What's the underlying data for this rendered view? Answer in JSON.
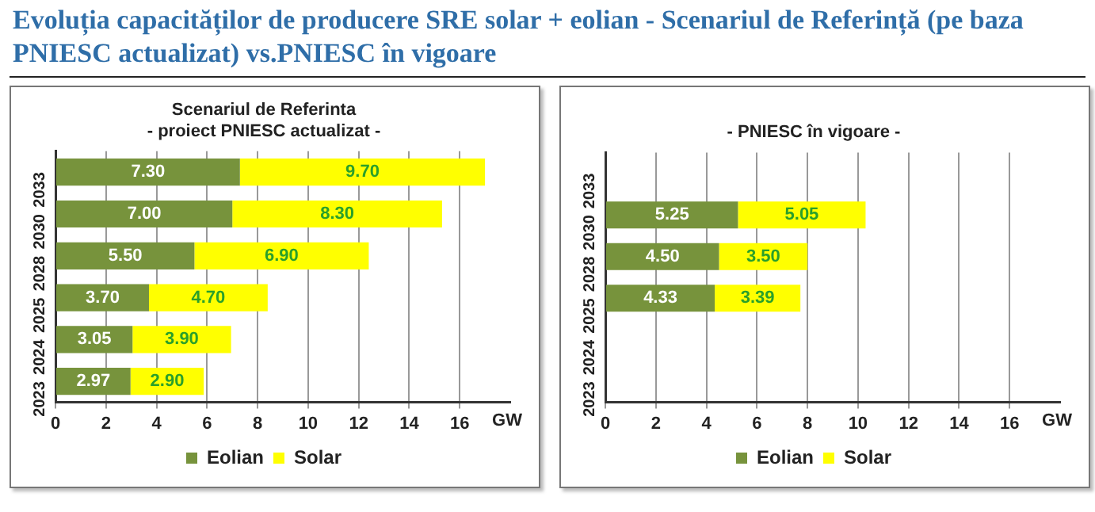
{
  "chart_data": [
    {
      "type": "bar",
      "orientation": "horizontal",
      "stacked": true,
      "title": "Evoluția capacităților de producere SRE solar + eolian - Scenariul de Referință (pe baza PNIESC actualizat)  vs.PNIESC în vigoare",
      "subtitle": "Scenariul de Referinta\n- proiect PNIESC actualizat -",
      "xlabel": "GW",
      "categories": [
        "2033",
        "2030",
        "2028",
        "2025",
        "2024",
        "2023"
      ],
      "series": [
        {
          "name": "Eolian",
          "color": "#77933c",
          "values": [
            7.3,
            7.0,
            5.5,
            3.7,
            3.05,
            2.97
          ],
          "value_labels": [
            "7.30",
            "7.00",
            "5.50",
            "3.70",
            "3.05",
            "2.97"
          ]
        },
        {
          "name": "Solar",
          "color": "#ffff00",
          "values": [
            9.7,
            8.3,
            6.9,
            4.7,
            3.9,
            2.9
          ],
          "value_labels": [
            "9.70",
            "8.30",
            "6.90",
            "4.70",
            "3.90",
            "2.90"
          ]
        }
      ],
      "xlim": [
        0,
        18
      ],
      "xticks": [
        0,
        2,
        4,
        6,
        8,
        10,
        12,
        14,
        16
      ],
      "grid": "x",
      "legend": "bottom"
    },
    {
      "type": "bar",
      "orientation": "horizontal",
      "stacked": true,
      "title": "- PNIESC în vigoare -",
      "xlabel": "GW",
      "categories": [
        "2033",
        "2030",
        "2028",
        "2025",
        "2024",
        "2023"
      ],
      "series": [
        {
          "name": "Eolian",
          "color": "#77933c",
          "values": [
            null,
            5.25,
            4.5,
            4.33,
            null,
            null
          ],
          "value_labels": [
            null,
            "5.25",
            "4.50",
            "4.33",
            null,
            null
          ]
        },
        {
          "name": "Solar",
          "color": "#ffff00",
          "values": [
            null,
            5.05,
            3.5,
            3.39,
            null,
            null
          ],
          "value_labels": [
            null,
            "5.05",
            "3.50",
            "3.39",
            null,
            null
          ]
        }
      ],
      "xlim": [
        0,
        18
      ],
      "xticks": [
        0,
        2,
        4,
        6,
        8,
        10,
        12,
        14,
        16
      ],
      "grid": "x",
      "legend": "bottom"
    }
  ]
}
